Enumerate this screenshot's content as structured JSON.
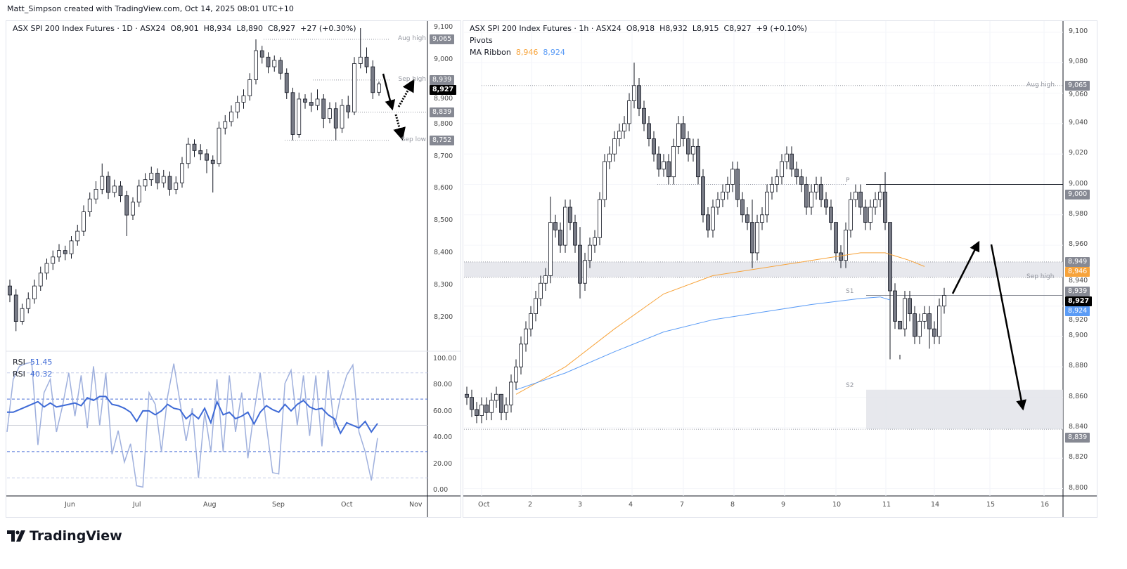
{
  "credit": "Matt_Simpson created with TradingView.com, Oct 14, 2025 08:01 UTC+10",
  "footer": {
    "logo_text": "TradingView"
  },
  "colors": {
    "ma_fast": "#f7a33a",
    "ma_slow": "#5b9cf6",
    "rsi_fast": "#9fb0dd",
    "rsi_slow": "#3e6ad6",
    "last_price": "#000000",
    "level_label": "#868993"
  },
  "left": {
    "legend": {
      "symbol": "ASX SPI 200 Index Futures · 1D · ASX24",
      "o": "O8,901",
      "h": "H8,934",
      "l": "L8,890",
      "c": "C8,927",
      "chg": "+27 (+0.30%)"
    },
    "price_ticks": [
      "9,100",
      "9,000",
      "8,900",
      "8,800",
      "8,700",
      "8,600",
      "8,500",
      "8,400",
      "8,300",
      "8,200"
    ],
    "price_tick_values": [
      9100,
      9000,
      8900,
      8800,
      8700,
      8600,
      8500,
      8400,
      8300,
      8200
    ],
    "date_ticks": [
      "Jun",
      "Jul",
      "Aug",
      "Sep",
      "Oct",
      "Nov"
    ],
    "levels": [
      {
        "label": "Aug high",
        "value": 9065,
        "text": "9,065"
      },
      {
        "label": "Sep high",
        "value": 8939,
        "text": "8,939"
      },
      {
        "label": "",
        "value": 8839,
        "text": "8,839"
      },
      {
        "label": "Sep low",
        "value": 8752,
        "text": "8,752"
      }
    ],
    "last_price": {
      "value": 8927,
      "text": "8,927"
    },
    "rsi": {
      "label1": "RSI",
      "value1": "51.45",
      "label2": "RSI",
      "value2": "40.32",
      "ticks": [
        "100.00",
        "80.00",
        "60.00",
        "40.00",
        "20.00",
        "0.00"
      ],
      "tick_values": [
        100,
        80,
        60,
        40,
        20,
        0
      ]
    }
  },
  "right": {
    "legend": {
      "symbol": "ASX SPI 200 Index Futures · 1h · ASX24",
      "o": "O8,918",
      "h": "H8,932",
      "l": "L8,915",
      "c": "C8,927",
      "chg": "+9 (+0.10%)",
      "pivots": "Pivots",
      "ma_label": "MA Ribbon",
      "ma_fast": "8,946",
      "ma_slow": "8,924"
    },
    "price_ticks": [
      "9,100",
      "9,080",
      "9,060",
      "9,040",
      "9,020",
      "9,000",
      "8,980",
      "8,960",
      "8,940",
      "8,920",
      "8,900",
      "8,880",
      "8,860",
      "8,840",
      "8,820",
      "8,800"
    ],
    "price_tick_values": [
      9100,
      9080,
      9060,
      9040,
      9020,
      9000,
      8980,
      8960,
      8940,
      8920,
      8900,
      8880,
      8860,
      8840,
      8820,
      8800
    ],
    "date_ticks": [
      "Oct",
      "2",
      "3",
      "4",
      "7",
      "8",
      "9",
      "10",
      "11",
      "14",
      "15",
      "16"
    ],
    "levels": [
      {
        "label": "Aug high",
        "value": 9065,
        "text": "9,065"
      },
      {
        "label": "P",
        "value": 9000,
        "text": "9,000"
      },
      {
        "label": "",
        "value": 8949,
        "text": "8,949"
      },
      {
        "label": "Sep high",
        "value": 8939,
        "text": "8,939"
      },
      {
        "label": "S1",
        "value": 8927,
        "text": ""
      },
      {
        "label": "S2",
        "value": 8865,
        "text": ""
      },
      {
        "label": "",
        "value": 8839,
        "text": "8,839"
      }
    ],
    "ma_labels": {
      "fast": {
        "value": 8946,
        "text": "8,946"
      },
      "slow": {
        "value": 8924,
        "text": "8,924"
      }
    },
    "last_price": {
      "value": 8927,
      "text": "8,927"
    }
  },
  "chart_data": [
    {
      "type": "candlestick",
      "title": "ASX SPI 200 Index Futures · 1D · ASX24",
      "x_ticks": [
        "Jun",
        "Jul",
        "Aug",
        "Sep",
        "Oct",
        "Nov"
      ],
      "ylim": [
        8130,
        9130
      ],
      "ohlc": [
        [
          8300,
          8320,
          8250,
          8272
        ],
        [
          8272,
          8290,
          8160,
          8190
        ],
        [
          8190,
          8245,
          8180,
          8230
        ],
        [
          8230,
          8280,
          8215,
          8260
        ],
        [
          8260,
          8320,
          8245,
          8300
        ],
        [
          8300,
          8360,
          8285,
          8340
        ],
        [
          8340,
          8385,
          8320,
          8370
        ],
        [
          8370,
          8410,
          8350,
          8390
        ],
        [
          8390,
          8430,
          8375,
          8410
        ],
        [
          8410,
          8425,
          8380,
          8400
        ],
        [
          8400,
          8455,
          8385,
          8440
        ],
        [
          8440,
          8490,
          8425,
          8470
        ],
        [
          8470,
          8550,
          8455,
          8530
        ],
        [
          8530,
          8590,
          8515,
          8570
        ],
        [
          8570,
          8625,
          8555,
          8600
        ],
        [
          8600,
          8680,
          8585,
          8640
        ],
        [
          8640,
          8655,
          8570,
          8590
        ],
        [
          8590,
          8630,
          8575,
          8610
        ],
        [
          8610,
          8625,
          8560,
          8580
        ],
        [
          8580,
          8595,
          8455,
          8520
        ],
        [
          8520,
          8575,
          8505,
          8560
        ],
        [
          8560,
          8630,
          8545,
          8610
        ],
        [
          8610,
          8650,
          8595,
          8630
        ],
        [
          8630,
          8670,
          8610,
          8650
        ],
        [
          8650,
          8665,
          8600,
          8620
        ],
        [
          8620,
          8660,
          8605,
          8640
        ],
        [
          8640,
          8655,
          8580,
          8600
        ],
        [
          8600,
          8640,
          8585,
          8620
        ],
        [
          8620,
          8700,
          8605,
          8680
        ],
        [
          8680,
          8760,
          8665,
          8740
        ],
        [
          8740,
          8755,
          8700,
          8720
        ],
        [
          8720,
          8740,
          8690,
          8710
        ],
        [
          8710,
          8725,
          8650,
          8690
        ],
        [
          8690,
          8705,
          8590,
          8680
        ],
        [
          8680,
          8810,
          8670,
          8790
        ],
        [
          8790,
          8830,
          8770,
          8810
        ],
        [
          8810,
          8860,
          8795,
          8840
        ],
        [
          8840,
          8890,
          8820,
          8870
        ],
        [
          8870,
          8910,
          8850,
          8890
        ],
        [
          8890,
          8960,
          8875,
          8940
        ],
        [
          8940,
          9065,
          8925,
          9030
        ],
        [
          9030,
          9045,
          8990,
          9010
        ],
        [
          9010,
          9025,
          8960,
          8980
        ],
        [
          8980,
          9015,
          8965,
          9000
        ],
        [
          9000,
          9010,
          8940,
          8960
        ],
        [
          8960,
          8975,
          8880,
          8900
        ],
        [
          8900,
          8915,
          8752,
          8770
        ],
        [
          8770,
          8900,
          8760,
          8880
        ],
        [
          8880,
          8895,
          8850,
          8870
        ],
        [
          8870,
          8900,
          8840,
          8860
        ],
        [
          8860,
          8910,
          8845,
          8880
        ],
        [
          8880,
          8895,
          8790,
          8820
        ],
        [
          8820,
          8870,
          8805,
          8850
        ],
        [
          8850,
          8870,
          8752,
          8790
        ],
        [
          8790,
          8880,
          8775,
          8860
        ],
        [
          8860,
          8890,
          8820,
          8840
        ],
        [
          8840,
          9010,
          8830,
          8990
        ],
        [
          8990,
          9100,
          8975,
          9010
        ],
        [
          9010,
          9040,
          8960,
          8980
        ],
        [
          8980,
          9000,
          8880,
          8900
        ],
        [
          8901,
          8934,
          8890,
          8927
        ]
      ],
      "annotations": [
        "Aug high 9,065",
        "Sep high 8,939",
        "8,839",
        "Sep low 8,752"
      ]
    },
    {
      "type": "line",
      "title": "RSI",
      "ylim": [
        0,
        100
      ],
      "bands": [
        90,
        70,
        50,
        30,
        10
      ],
      "series": [
        {
          "name": "RSI",
          "values": [
            45,
            85,
            95,
            97,
            98,
            35,
            75,
            85,
            45,
            65,
            90,
            57,
            88,
            48,
            95,
            50,
            90,
            28,
            46,
            22,
            36,
            4,
            3,
            75,
            66,
            30,
            72,
            97,
            68,
            38,
            63,
            10,
            60,
            30,
            85,
            30,
            88,
            45,
            75,
            25,
            60,
            90,
            50,
            14,
            13,
            82,
            92,
            50,
            88,
            42,
            88,
            34,
            92,
            48,
            72,
            88,
            96,
            45,
            30,
            8,
            40.32
          ]
        },
        {
          "name": "RSI",
          "values": [
            60,
            60,
            62,
            64,
            66,
            68,
            64,
            67,
            64,
            65,
            66,
            67,
            65,
            71,
            69,
            72,
            72,
            66,
            65,
            63,
            60,
            53,
            61,
            61,
            58,
            61,
            66,
            63,
            62,
            55,
            59,
            55,
            63,
            52,
            68,
            58,
            60,
            55,
            57,
            60,
            51,
            60,
            65,
            62,
            60,
            66,
            61,
            66,
            69,
            64,
            62,
            63,
            58,
            55,
            44,
            52,
            50,
            48,
            53,
            45,
            51.45
          ]
        }
      ]
    },
    {
      "type": "candlestick",
      "title": "ASX SPI 200 Index Futures · 1h · ASX24",
      "x_ticks": [
        "Oct",
        "2",
        "3",
        "4",
        "7",
        "8",
        "9",
        "10",
        "11",
        "14",
        "15",
        "16"
      ],
      "ylim": [
        8795,
        9105
      ],
      "closes": [
        8860,
        8852,
        8848,
        8855,
        8850,
        8858,
        8862,
        8850,
        8855,
        8870,
        8880,
        8895,
        8905,
        8915,
        8925,
        8935,
        8940,
        8975,
        8970,
        8960,
        8985,
        8975,
        8960,
        8935,
        8950,
        8960,
        8965,
        8990,
        9015,
        9020,
        9030,
        9035,
        9040,
        9055,
        9065,
        9050,
        9040,
        9030,
        9020,
        9010,
        9015,
        9005,
        9025,
        9040,
        9030,
        9020,
        9025,
        9005,
        8980,
        8970,
        8985,
        8990,
        8995,
        9000,
        9010,
        8990,
        8980,
        8975,
        8955,
        8975,
        8980,
        8995,
        9000,
        9005,
        9015,
        9020,
        9010,
        9005,
        9000,
        8985,
        8995,
        9000,
        8990,
        8985,
        8975,
        8955,
        8950,
        8970,
        8990,
        8995,
        8985,
        8975,
        8985,
        8990,
        8995,
        8975,
        8930,
        8910,
        8905,
        8925,
        8915,
        8900,
        8910,
        8915,
        8905,
        8900,
        8920,
        8927
      ],
      "highs": {
        "7": 8850,
        "17": 8992,
        "23": 8972,
        "34": 9080,
        "58": 8990,
        "75": 8975,
        "85": 9008,
        "86": 8960,
        "88": 8885
      },
      "lows": {
        "7": 8845,
        "23": 8925,
        "58": 8945,
        "86": 8885,
        "88": 8888,
        "94": 8892
      },
      "ma_fast": [
        [
          10,
          8862
        ],
        [
          20,
          8880
        ],
        [
          30,
          8905
        ],
        [
          40,
          8928
        ],
        [
          50,
          8940
        ],
        [
          60,
          8945
        ],
        [
          70,
          8950
        ],
        [
          80,
          8955
        ],
        [
          85,
          8955
        ],
        [
          90,
          8950
        ],
        [
          93,
          8946
        ]
      ],
      "ma_slow": [
        [
          10,
          8865
        ],
        [
          20,
          8876
        ],
        [
          30,
          8890
        ],
        [
          40,
          8903
        ],
        [
          50,
          8911
        ],
        [
          60,
          8916
        ],
        [
          70,
          8921
        ],
        [
          80,
          8925
        ],
        [
          84,
          8926
        ],
        [
          86,
          8924
        ]
      ],
      "zones": [
        {
          "from": 8939,
          "to": 8949
        },
        {
          "from": 8839,
          "to": 8865
        }
      ]
    }
  ]
}
